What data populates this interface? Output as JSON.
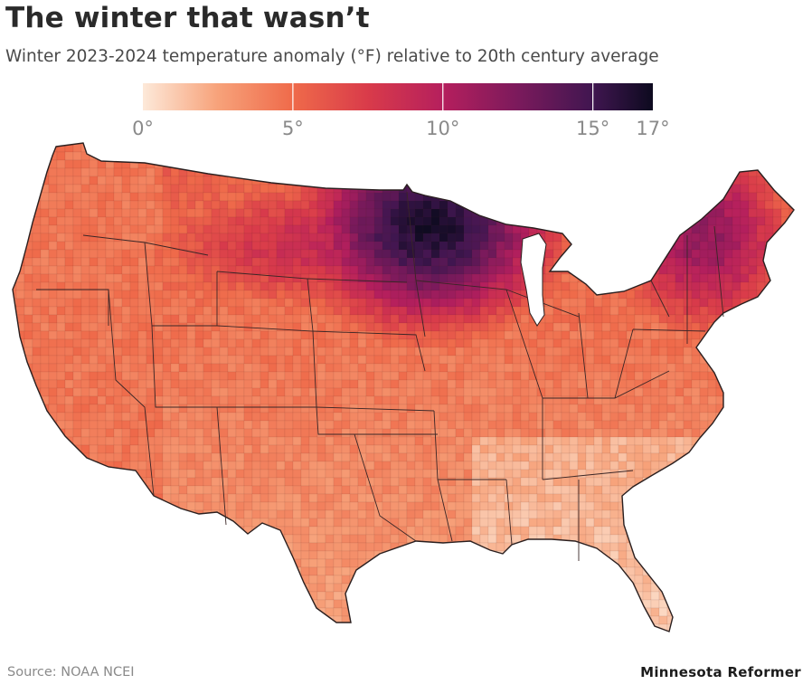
{
  "title": "The winter that wasn’t",
  "subtitle": "Winter 2023-2024 temperature anomaly (°F) relative to 20th century average",
  "legend": {
    "min": 0,
    "max": 17,
    "ticks": [
      {
        "value": 0,
        "label": "0°"
      },
      {
        "value": 5,
        "label": "5°"
      },
      {
        "value": 10,
        "label": "10°"
      },
      {
        "value": 15,
        "label": "15°"
      },
      {
        "value": 17,
        "label": "17°"
      }
    ],
    "stops": [
      {
        "value": 0,
        "color": "#fde9d9"
      },
      {
        "value": 2.5,
        "color": "#f7a27a"
      },
      {
        "value": 5,
        "color": "#ef6a4a"
      },
      {
        "value": 7.5,
        "color": "#d93b4a"
      },
      {
        "value": 10,
        "color": "#b51f5d"
      },
      {
        "value": 12.5,
        "color": "#7b1a5c"
      },
      {
        "value": 15,
        "color": "#401650"
      },
      {
        "value": 17,
        "color": "#0d0a1f"
      }
    ]
  },
  "map": {
    "region": "Contiguous United States",
    "units": "°F",
    "border_color": "#3a2a2a"
  },
  "source": "Source: NOAA NCEI",
  "brand": "Minnesota Reformer"
}
